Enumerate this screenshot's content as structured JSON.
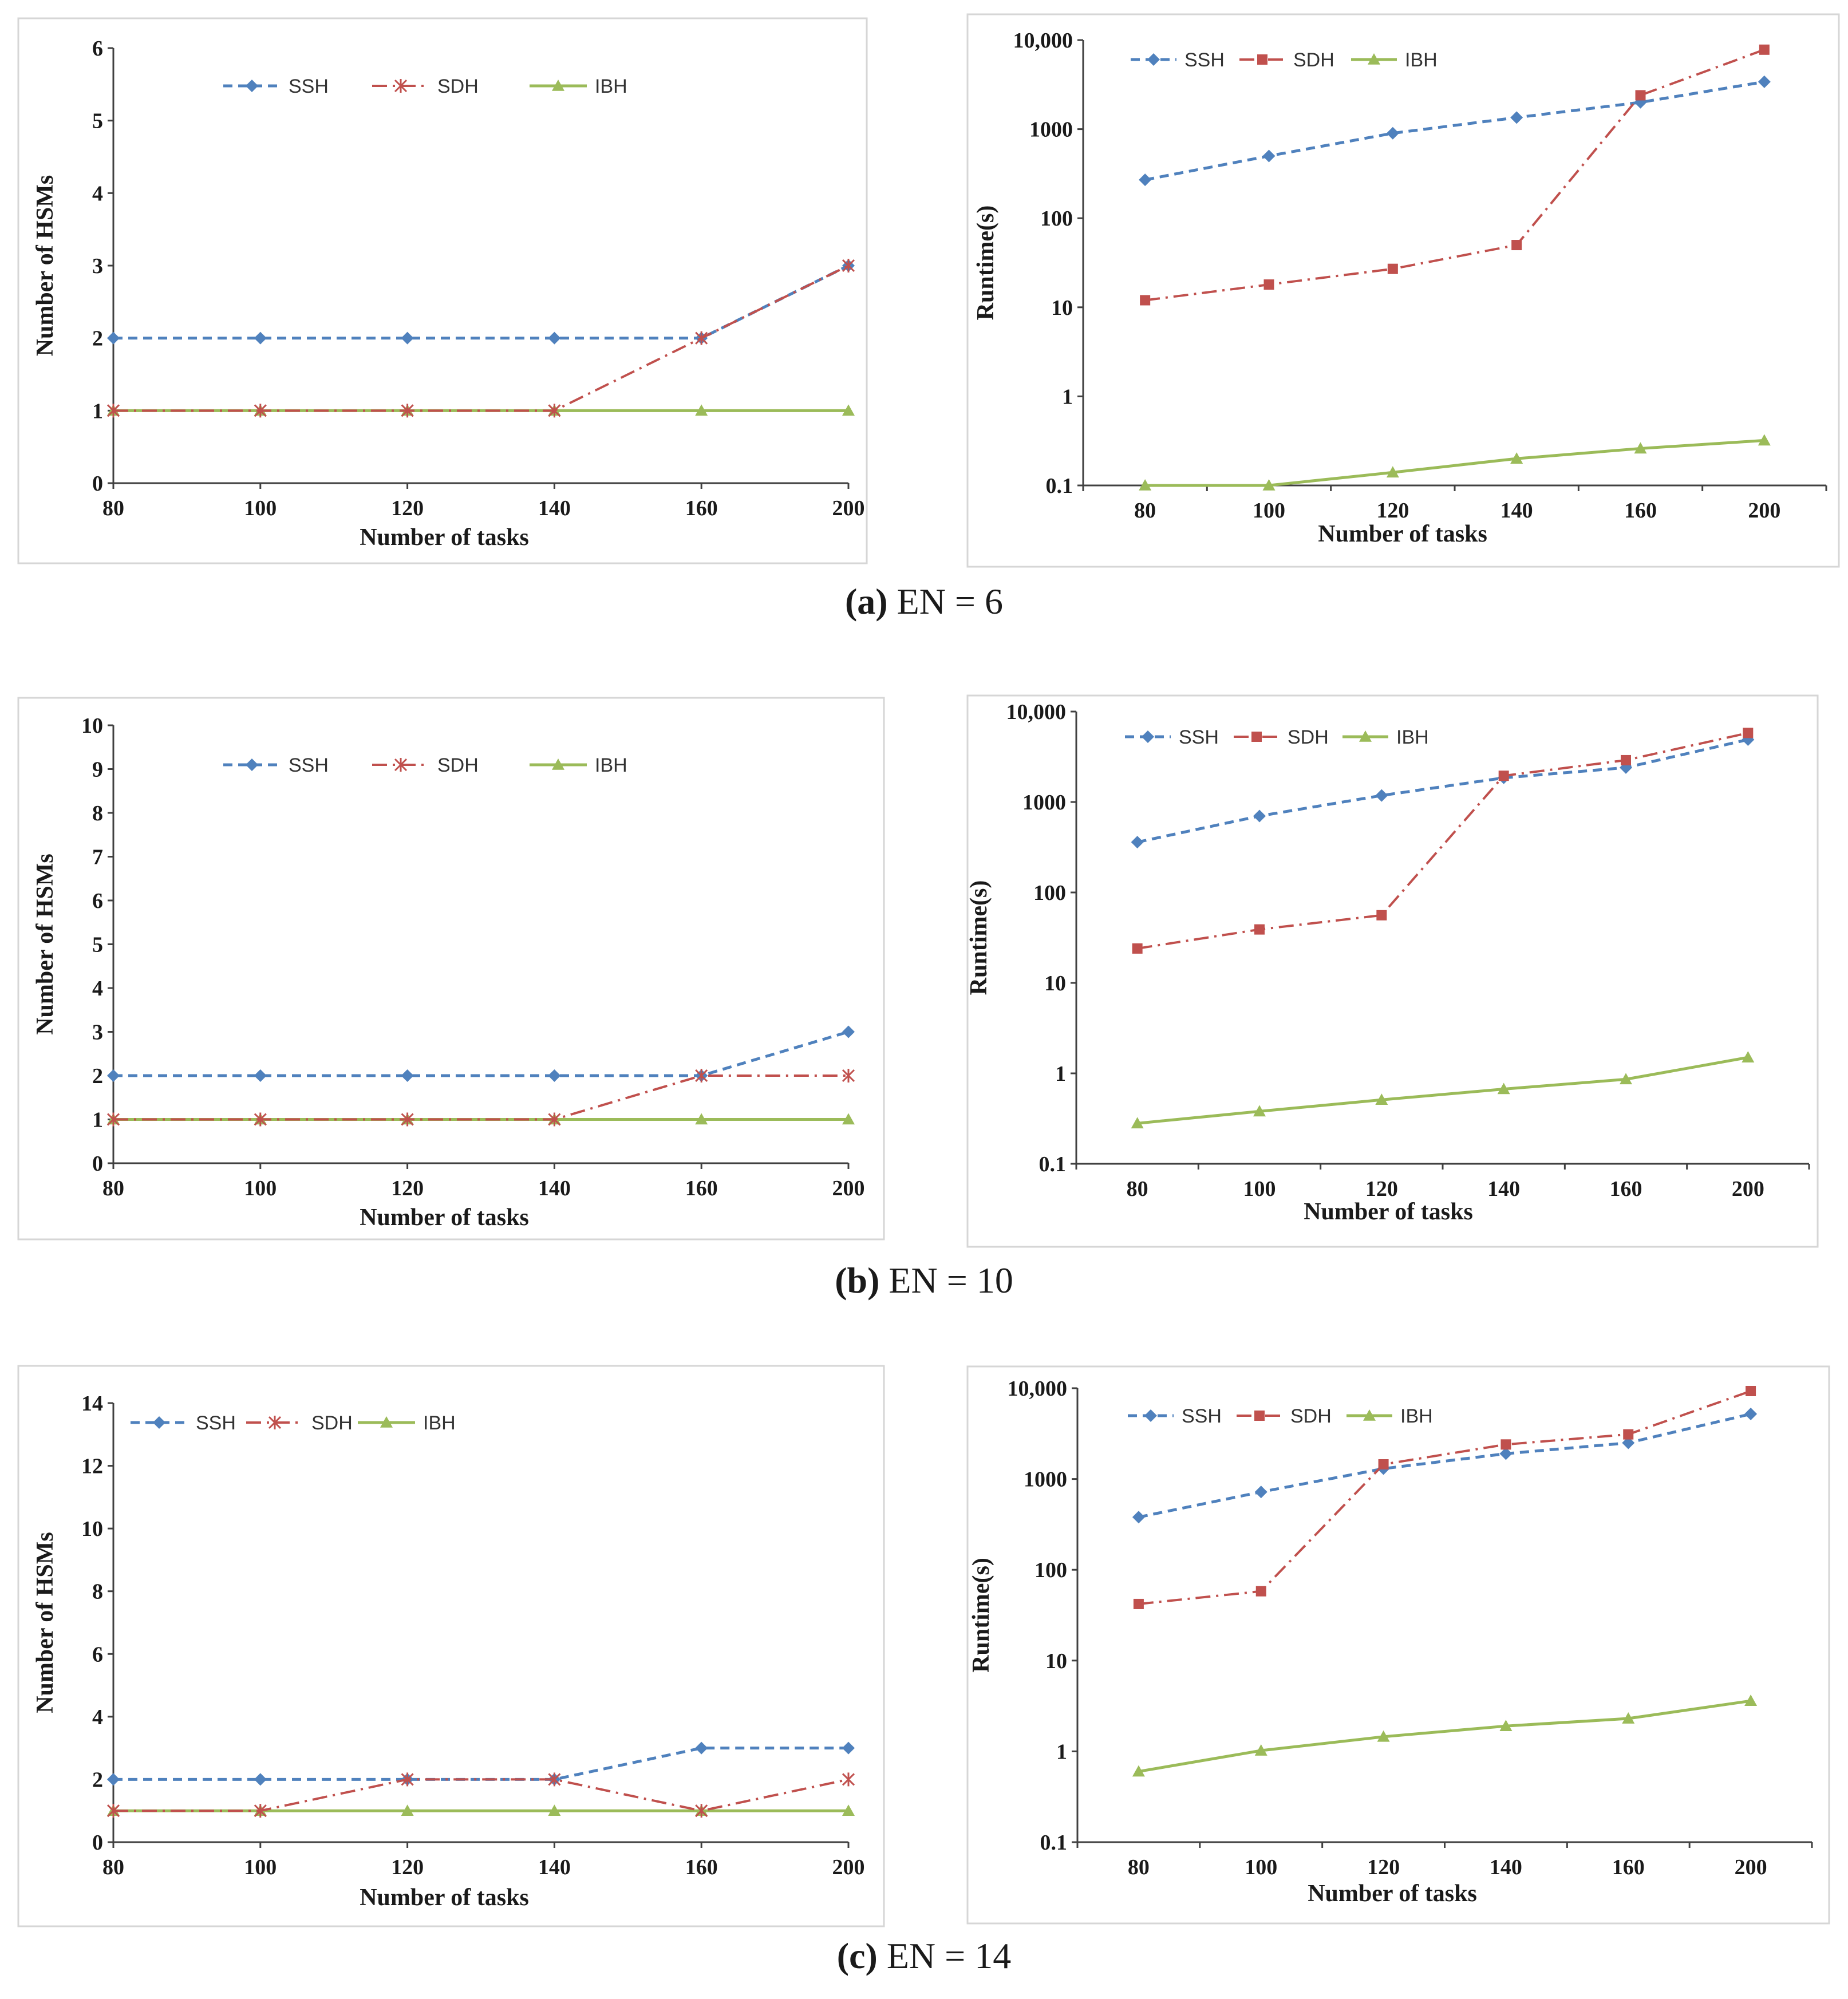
{
  "colors": {
    "SSH": "#4f81bd",
    "SDH": "#c0504d",
    "IBH": "#9bbb59"
  },
  "chart_data": [
    {
      "type": "line",
      "panel": "a-left",
      "xlabel": "Number of tasks",
      "ylabel": "Number of HSMs",
      "categories": [
        "80",
        "100",
        "120",
        "140",
        "160",
        "200"
      ],
      "ylim": [
        0,
        6
      ],
      "yticks": [
        0,
        1,
        2,
        3,
        4,
        5,
        6
      ],
      "ytick_labels": [
        "0",
        "1",
        "2",
        "3",
        "4",
        "5",
        "6"
      ],
      "series": [
        {
          "name": "SSH",
          "values": [
            2,
            2,
            2,
            2,
            2,
            3
          ]
        },
        {
          "name": "SDH",
          "values": [
            1,
            1,
            1,
            1,
            2,
            3
          ]
        },
        {
          "name": "IBH",
          "values": [
            1,
            1,
            1,
            1,
            1,
            1
          ]
        }
      ]
    },
    {
      "type": "line",
      "panel": "a-right",
      "yscale": "log",
      "xlabel": "Number of tasks",
      "ylabel": "Runtime(s)",
      "categories": [
        "80",
        "100",
        "120",
        "140",
        "160",
        "200"
      ],
      "ylim": [
        0.1,
        10000
      ],
      "yticks": [
        0.1,
        1,
        10,
        100,
        1000,
        10000
      ],
      "ytick_labels": [
        "0.1",
        "1",
        "10",
        "100",
        "1000",
        "10,000"
      ],
      "series": [
        {
          "name": "SSH",
          "values": [
            270,
            500,
            900,
            1350,
            2000,
            3400
          ]
        },
        {
          "name": "SDH",
          "values": [
            12,
            18,
            27,
            50,
            2400,
            7800
          ]
        },
        {
          "name": "IBH",
          "values": [
            0.1,
            0.1,
            0.14,
            0.2,
            0.26,
            0.32
          ]
        }
      ]
    },
    {
      "type": "line",
      "panel": "b-left",
      "xlabel": "Number of tasks",
      "ylabel": "Number of HSMs",
      "categories": [
        "80",
        "100",
        "120",
        "140",
        "160",
        "200"
      ],
      "ylim": [
        0,
        10
      ],
      "yticks": [
        0,
        1,
        2,
        3,
        4,
        5,
        6,
        7,
        8,
        9,
        10
      ],
      "ytick_labels": [
        "0",
        "1",
        "2",
        "3",
        "4",
        "5",
        "6",
        "7",
        "8",
        "9",
        "10"
      ],
      "series": [
        {
          "name": "SSH",
          "values": [
            2,
            2,
            2,
            2,
            2,
            3
          ]
        },
        {
          "name": "SDH",
          "values": [
            1,
            1,
            1,
            1,
            2,
            2
          ]
        },
        {
          "name": "IBH",
          "values": [
            1,
            1,
            1,
            1,
            1,
            1
          ]
        }
      ]
    },
    {
      "type": "line",
      "panel": "b-right",
      "yscale": "log",
      "xlabel": "Number of tasks",
      "ylabel": "Runtime(s)",
      "categories": [
        "80",
        "100",
        "120",
        "140",
        "160",
        "200"
      ],
      "ylim": [
        0.1,
        10000
      ],
      "yticks": [
        0.1,
        1,
        10,
        100,
        1000,
        10000
      ],
      "ytick_labels": [
        "0.1",
        "1",
        "10",
        "100",
        "1000",
        "10,000"
      ],
      "series": [
        {
          "name": "SSH",
          "values": [
            360,
            700,
            1180,
            1850,
            2400,
            4900
          ]
        },
        {
          "name": "SDH",
          "values": [
            24,
            39,
            56,
            1950,
            2900,
            5800
          ]
        },
        {
          "name": "IBH",
          "values": [
            0.28,
            0.38,
            0.51,
            0.67,
            0.86,
            1.5
          ]
        }
      ]
    },
    {
      "type": "line",
      "panel": "c-left",
      "xlabel": "Number of tasks",
      "ylabel": "Number of HSMs",
      "categories": [
        "80",
        "100",
        "120",
        "140",
        "160",
        "200"
      ],
      "ylim": [
        0,
        14
      ],
      "yticks": [
        0,
        2,
        4,
        6,
        8,
        10,
        12,
        14
      ],
      "ytick_labels": [
        "0",
        "2",
        "4",
        "6",
        "8",
        "10",
        "12",
        "14"
      ],
      "series": [
        {
          "name": "SSH",
          "values": [
            2,
            2,
            2,
            2,
            3,
            3
          ]
        },
        {
          "name": "SDH",
          "values": [
            1,
            1,
            2,
            2,
            1,
            2
          ]
        },
        {
          "name": "IBH",
          "values": [
            1,
            1,
            1,
            1,
            1,
            1
          ]
        }
      ]
    },
    {
      "type": "line",
      "panel": "c-right",
      "yscale": "log",
      "xlabel": "Number of tasks",
      "ylabel": "Runtime(s)",
      "categories": [
        "80",
        "100",
        "120",
        "140",
        "160",
        "200"
      ],
      "ylim": [
        0.1,
        10000
      ],
      "yticks": [
        0.1,
        1,
        10,
        100,
        1000,
        10000
      ],
      "ytick_labels": [
        "0.1",
        "1",
        "10",
        "100",
        "1000",
        "10,000"
      ],
      "series": [
        {
          "name": "SSH",
          "values": [
            380,
            720,
            1300,
            1900,
            2500,
            5200
          ]
        },
        {
          "name": "SDH",
          "values": [
            42,
            58,
            1450,
            2400,
            3100,
            9300
          ]
        },
        {
          "name": "IBH",
          "values": [
            0.6,
            1.02,
            1.45,
            1.9,
            2.3,
            3.6
          ]
        }
      ]
    }
  ],
  "captions": [
    {
      "label": "(a)",
      "text": " EN = 6"
    },
    {
      "label": "(b)",
      "text": " EN = 10"
    },
    {
      "label": "(c)",
      "text": " EN = 14"
    }
  ]
}
